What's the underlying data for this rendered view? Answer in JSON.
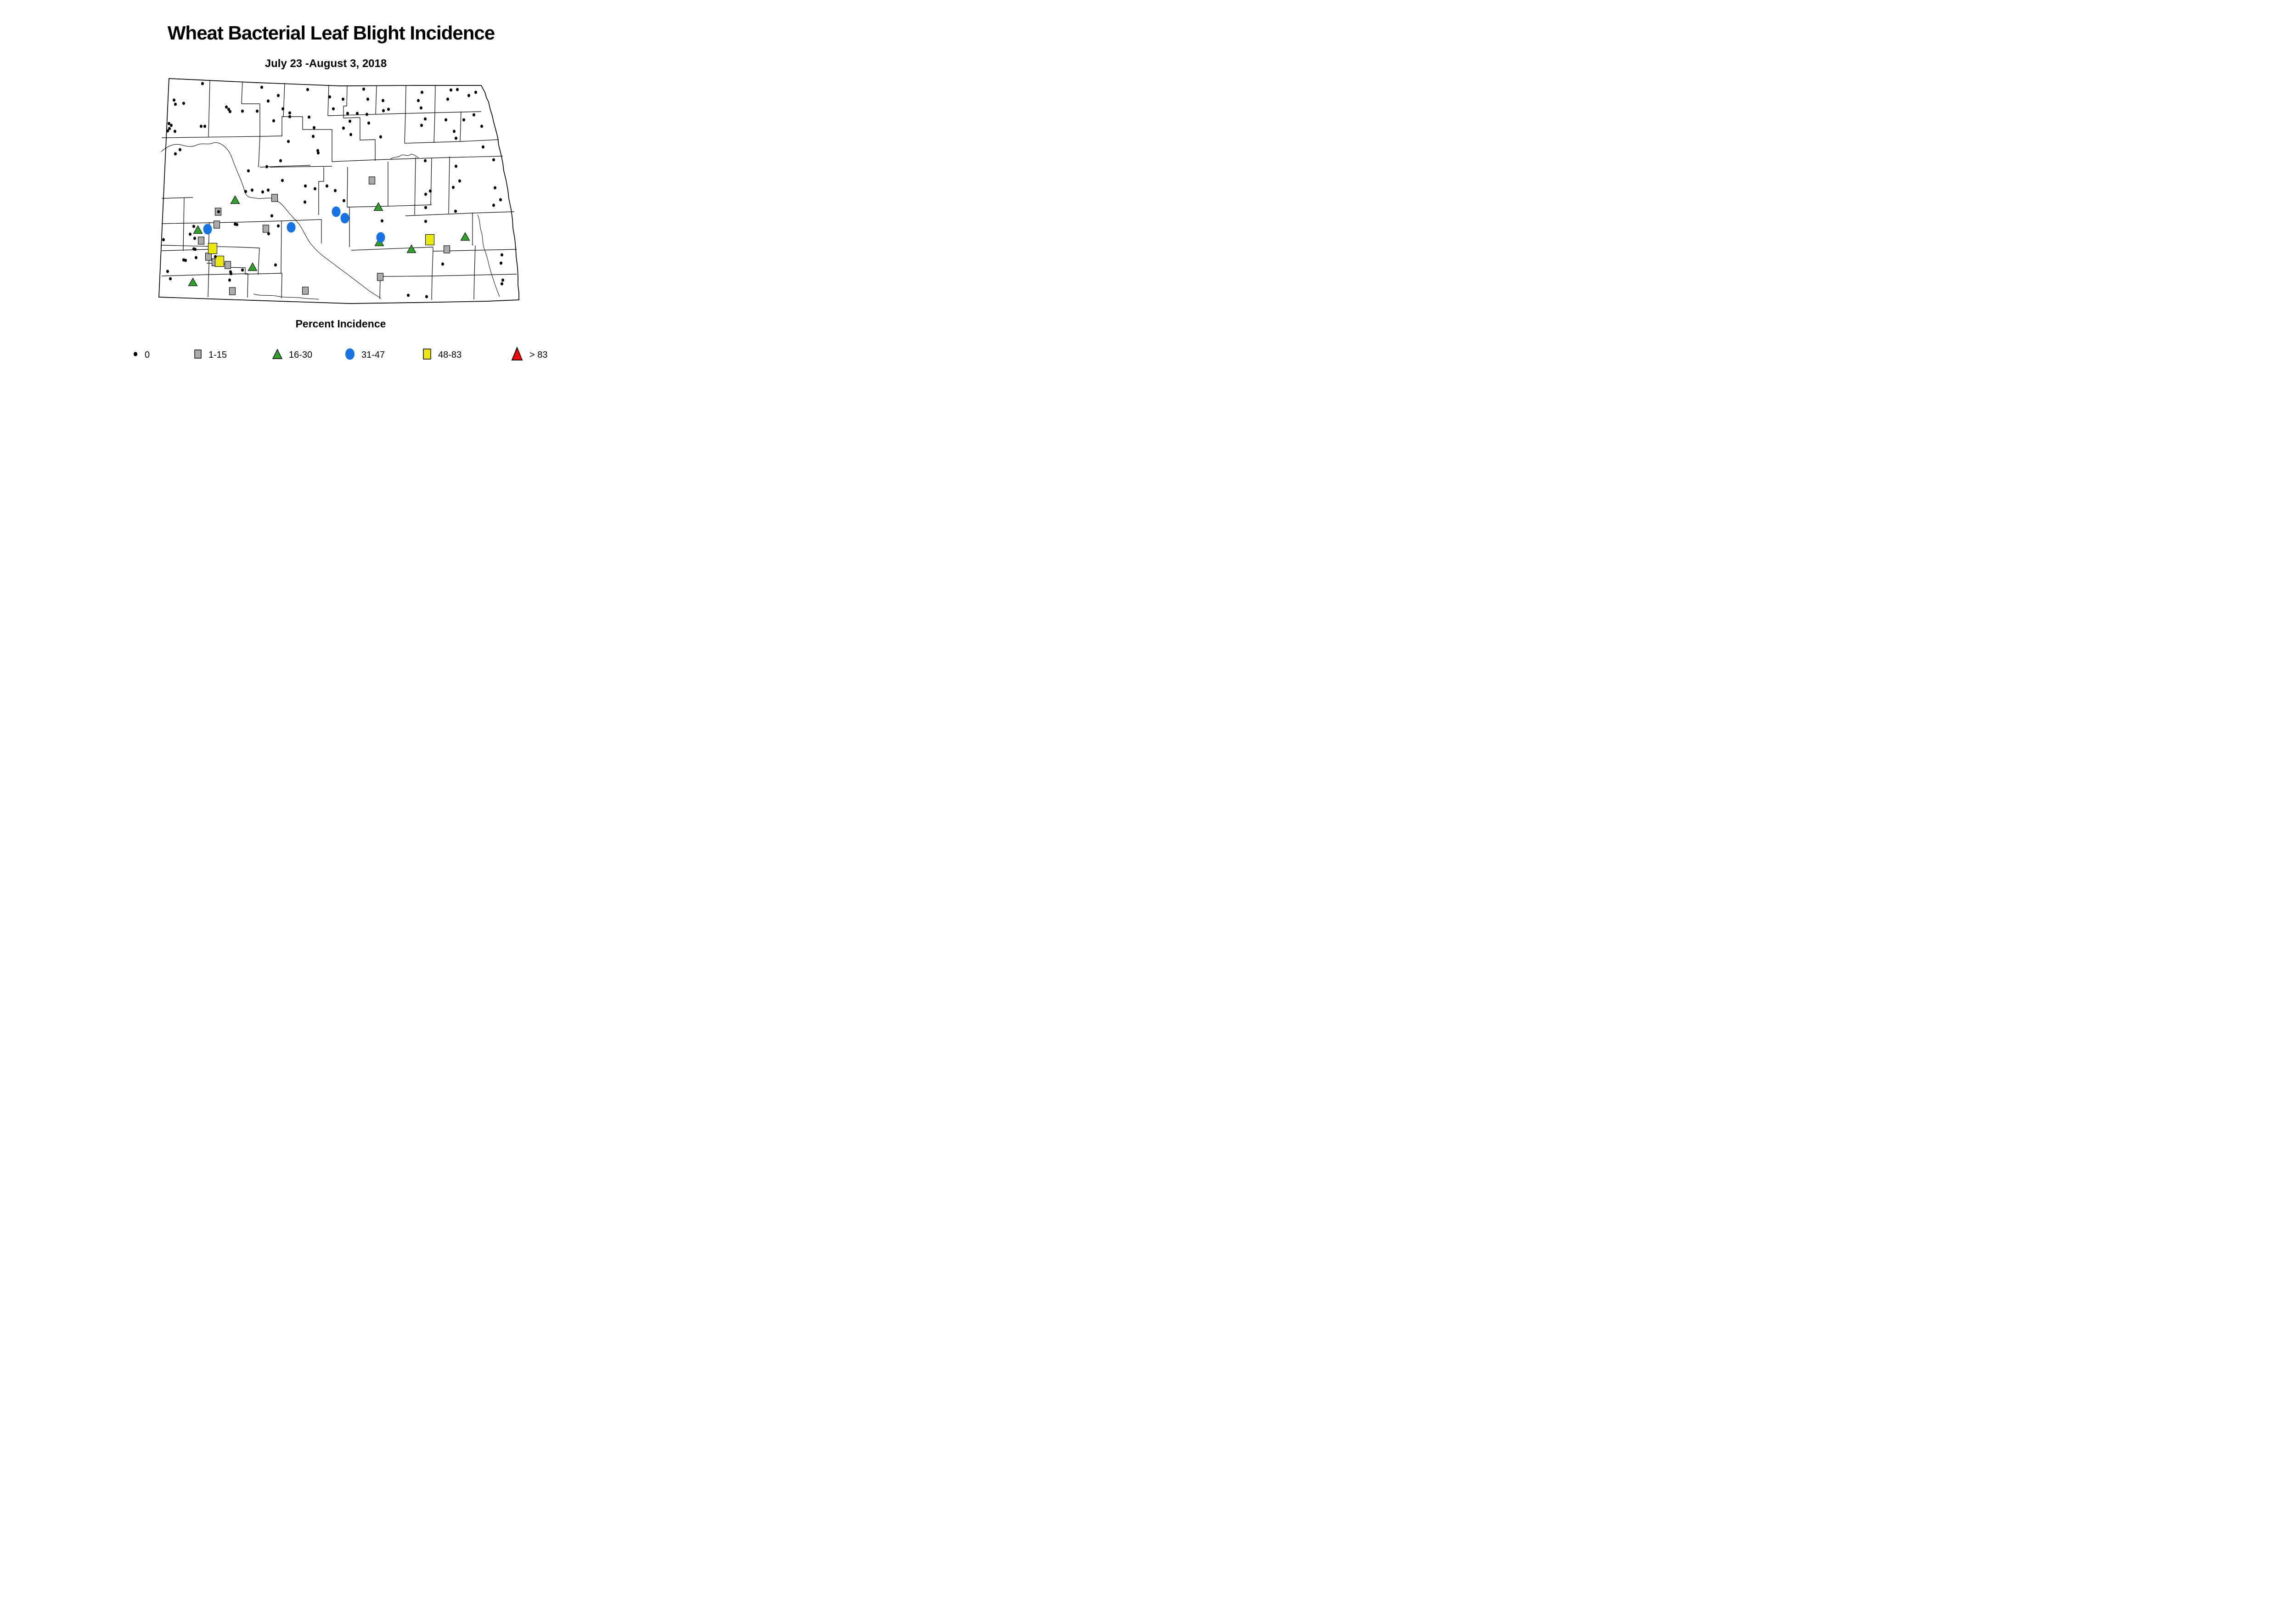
{
  "title": "Wheat Bacterial Leaf Blight Incidence",
  "subtitle": "July 23 -August 3, 2018",
  "legend": {
    "title": "Percent Incidence",
    "items": [
      {
        "label": "0",
        "symbol": "black-dot",
        "fill": "#000000"
      },
      {
        "label": "1-15",
        "symbol": "gray-square",
        "fill": "#ababab"
      },
      {
        "label": "16-30",
        "symbol": "green-triangle",
        "fill": "#2fa12b"
      },
      {
        "label": "31-47",
        "symbol": "blue-circle",
        "fill": "#1573e6"
      },
      {
        "label": "48-83",
        "symbol": "yellow-square",
        "fill": "#ebe70a"
      },
      {
        "label": "> 83",
        "symbol": "red-triangle",
        "fill": "#ff0000"
      }
    ]
  },
  "map": {
    "region": "North Dakota",
    "markers": {
      "dots": [
        [
          441,
          182
        ],
        [
          570,
          190
        ],
        [
          670,
          195
        ],
        [
          606,
          208
        ],
        [
          584,
          220
        ],
        [
          718,
          211
        ],
        [
          379,
          218
        ],
        [
          382,
          227
        ],
        [
          400,
          225
        ],
        [
          493,
          233
        ],
        [
          498,
          238
        ],
        [
          501,
          243
        ],
        [
          528,
          242
        ],
        [
          560,
          242
        ],
        [
          616,
          237
        ],
        [
          631,
          246
        ],
        [
          631,
          254
        ],
        [
          673,
          255
        ],
        [
          596,
          263
        ],
        [
          684,
          278
        ],
        [
          682,
          297
        ],
        [
          628,
          308
        ],
        [
          368,
          269
        ],
        [
          373,
          273
        ],
        [
          369,
          280
        ],
        [
          365,
          285
        ],
        [
          381,
          286
        ],
        [
          438,
          275
        ],
        [
          446,
          275
        ],
        [
          392,
          326
        ],
        [
          382,
          335
        ],
        [
          692,
          328
        ],
        [
          693,
          333
        ],
        [
          611,
          350
        ],
        [
          581,
          363
        ],
        [
          541,
          372
        ],
        [
          615,
          393
        ],
        [
          535,
          417
        ],
        [
          549,
          414
        ],
        [
          572,
          418
        ],
        [
          584,
          414
        ],
        [
          726,
          237
        ],
        [
          749,
          437
        ],
        [
          792,
          194
        ],
        [
          801,
          216
        ],
        [
          834,
          219
        ],
        [
          747,
          216
        ],
        [
          757,
          247
        ],
        [
          778,
          247
        ],
        [
          799,
          249
        ],
        [
          835,
          241
        ],
        [
          846,
          238
        ],
        [
          919,
          201
        ],
        [
          911,
          219
        ],
        [
          917,
          235
        ],
        [
          982,
          196
        ],
        [
          996,
          195
        ],
        [
          1036,
          201
        ],
        [
          1021,
          208
        ],
        [
          975,
          216
        ],
        [
          1032,
          250
        ],
        [
          926,
          259
        ],
        [
          918,
          273
        ],
        [
          971,
          261
        ],
        [
          1010,
          261
        ],
        [
          1049,
          275
        ],
        [
          762,
          264
        ],
        [
          803,
          268
        ],
        [
          748,
          279
        ],
        [
          764,
          293
        ],
        [
          829,
          298
        ],
        [
          989,
          286
        ],
        [
          993,
          301
        ],
        [
          1052,
          320
        ],
        [
          1075,
          348
        ],
        [
          926,
          350
        ],
        [
          993,
          362
        ],
        [
          937,
          416
        ],
        [
          927,
          423
        ],
        [
          987,
          408
        ],
        [
          1001,
          394
        ],
        [
          1078,
          409
        ],
        [
          1090,
          435
        ],
        [
          1075,
          447
        ],
        [
          664,
          440
        ],
        [
          665,
          405
        ],
        [
          686,
          411
        ],
        [
          712,
          405
        ],
        [
          730,
          415
        ],
        [
          832,
          481
        ],
        [
          927,
          452
        ],
        [
          927,
          482
        ],
        [
          992,
          460
        ],
        [
          592,
          470
        ],
        [
          606,
          492
        ],
        [
          585,
          509
        ],
        [
          516,
          489
        ],
        [
          422,
          493
        ],
        [
          424,
          519
        ],
        [
          422,
          542
        ],
        [
          512,
          488
        ],
        [
          476,
          461
        ],
        [
          414,
          510
        ],
        [
          356,
          522
        ],
        [
          425,
          543
        ],
        [
          427,
          561
        ],
        [
          400,
          566
        ],
        [
          404,
          567
        ],
        [
          469,
          559
        ],
        [
          365,
          591
        ],
        [
          371,
          607
        ],
        [
          502,
          592
        ],
        [
          528,
          588
        ],
        [
          500,
          610
        ],
        [
          503,
          596
        ],
        [
          600,
          577
        ],
        [
          889,
          643
        ],
        [
          929,
          646
        ],
        [
          964,
          575
        ],
        [
          1093,
          555
        ],
        [
          1091,
          573
        ],
        [
          1095,
          610
        ],
        [
          1093,
          618
        ]
      ],
      "gray_squares": [
        [
          475,
          461
        ],
        [
          598,
          431
        ],
        [
          810,
          393
        ],
        [
          472,
          489
        ],
        [
          438,
          524
        ],
        [
          454,
          559
        ],
        [
          468,
          571
        ],
        [
          496,
          577
        ],
        [
          579,
          498
        ],
        [
          973,
          543
        ],
        [
          828,
          603
        ],
        [
          506,
          634
        ],
        [
          665,
          633
        ]
      ],
      "green_triangles": [
        [
          512,
          435
        ],
        [
          431,
          500
        ],
        [
          824,
          450
        ],
        [
          826,
          527
        ],
        [
          896,
          542
        ],
        [
          1013,
          515
        ],
        [
          550,
          581
        ],
        [
          420,
          614
        ]
      ],
      "blue_circles": [
        [
          452,
          499
        ],
        [
          634,
          495
        ],
        [
          732,
          461
        ],
        [
          751,
          475
        ],
        [
          829,
          517
        ]
      ],
      "yellow_squares": [
        [
          463,
          541
        ],
        [
          478,
          569
        ],
        [
          936,
          522
        ]
      ],
      "red_triangles": []
    }
  }
}
